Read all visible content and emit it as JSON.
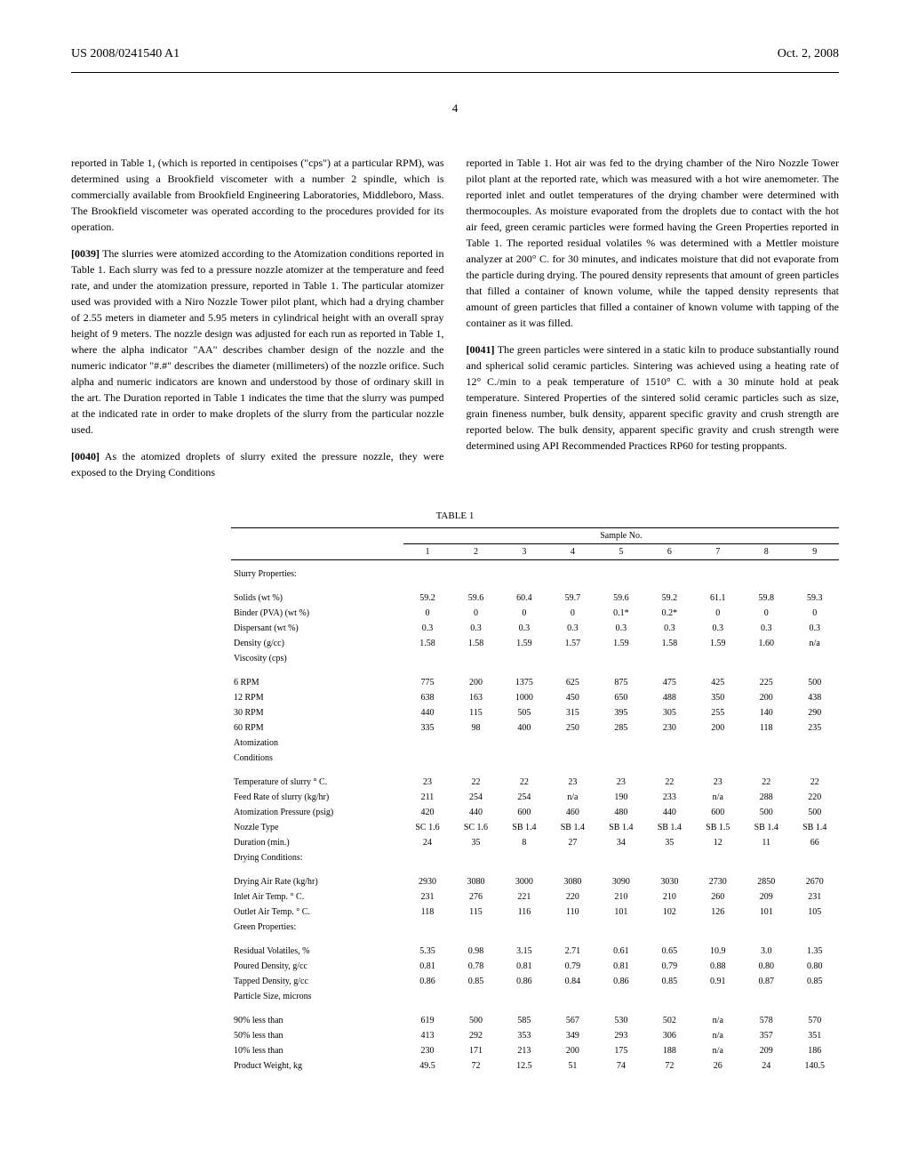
{
  "header": {
    "pub_number": "US 2008/0241540 A1",
    "date": "Oct. 2, 2008"
  },
  "page_number": "4",
  "paragraphs": {
    "pre39": "reported in Table 1, (which is reported in centipoises (\"cps\") at a particular RPM), was determined using a Brookfield viscometer with a number 2 spindle, which is commercially available from Brookfield Engineering Laboratories, Middleboro, Mass. The Brookfield viscometer was operated according to the procedures provided for its operation.",
    "p39_num": "[0039]",
    "p39": " The slurries were atomized according to the Atomization conditions reported in Table 1. Each slurry was fed to a pressure nozzle atomizer at the temperature and feed rate, and under the atomization pressure, reported in Table 1. The particular atomizer used was provided with a Niro Nozzle Tower pilot plant, which had a drying chamber of 2.55 meters in diameter and 5.95 meters in cylindrical height with an overall spray height of 9 meters. The nozzle design was adjusted for each run as reported in Table 1, where the alpha indicator \"AA\" describes chamber design of the nozzle and the numeric indicator \"#.#\" describes the diameter (millimeters) of the nozzle orifice. Such alpha and numeric indicators are known and understood by those of ordinary skill in the art. The Duration reported in Table 1 indicates the time that the slurry was pumped at the indicated rate in order to make droplets of the slurry from the particular nozzle used.",
    "p40_num": "[0040]",
    "p40": " As the atomized droplets of slurry exited the pressure nozzle, they were exposed to the Drying Conditions",
    "p40_cont": "reported in Table 1. Hot air was fed to the drying chamber of the Niro Nozzle Tower pilot plant at the reported rate, which was measured with a hot wire anemometer. The reported inlet and outlet temperatures of the drying chamber were determined with thermocouples. As moisture evaporated from the droplets due to contact with the hot air feed, green ceramic particles were formed having the Green Properties reported in Table 1. The reported residual volatiles % was determined with a Mettler moisture analyzer at 200° C. for 30 minutes, and indicates moisture that did not evaporate from the particle during drying. The poured density represents that amount of green particles that filled a container of known volume, while the tapped density represents that amount of green particles that filled a container of known volume with tapping of the container as it was filled.",
    "p41_num": "[0041]",
    "p41": " The green particles were sintered in a static kiln to produce substantially round and spherical solid ceramic particles. Sintering was achieved using a heating rate of 12° C./min to a peak temperature of 1510° C. with a 30 minute hold at peak temperature. Sintered Properties of the sintered solid ceramic particles such as size, grain fineness number, bulk density, apparent specific gravity and crush strength are reported below. The bulk density, apparent specific gravity and crush strength were determined using API Recommended Practices RP60 for testing proppants."
  },
  "table": {
    "title": "TABLE 1",
    "sample_label": "Sample No.",
    "columns": [
      "1",
      "2",
      "3",
      "4",
      "5",
      "6",
      "7",
      "8",
      "9"
    ],
    "sections": [
      {
        "name": "Slurry Properties:",
        "rows": [
          {
            "label": "Solids (wt %)",
            "vals": [
              "59.2",
              "59.6",
              "60.4",
              "59.7",
              "59.6",
              "59.2",
              "61.1",
              "59.8",
              "59.3"
            ]
          },
          {
            "label": "Binder (PVA) (wt %)",
            "vals": [
              "0",
              "0",
              "0",
              "0",
              "0.1*",
              "0.2*",
              "0",
              "0",
              "0"
            ]
          },
          {
            "label": "Dispersant (wt %)",
            "vals": [
              "0.3",
              "0.3",
              "0.3",
              "0.3",
              "0.3",
              "0.3",
              "0.3",
              "0.3",
              "0.3"
            ]
          },
          {
            "label": "Density (g/cc)",
            "vals": [
              "1.58",
              "1.58",
              "1.59",
              "1.57",
              "1.59",
              "1.58",
              "1.59",
              "1.60",
              "n/a"
            ]
          },
          {
            "label": "Viscosity (cps)",
            "vals": [
              "",
              "",
              "",
              "",
              "",
              "",
              "",
              "",
              ""
            ]
          }
        ]
      },
      {
        "name": "",
        "rows": [
          {
            "label": "6 RPM",
            "vals": [
              "775",
              "200",
              "1375",
              "625",
              "875",
              "475",
              "425",
              "225",
              "500"
            ]
          },
          {
            "label": "12 RPM",
            "vals": [
              "638",
              "163",
              "1000",
              "450",
              "650",
              "488",
              "350",
              "200",
              "438"
            ]
          },
          {
            "label": "30 RPM",
            "vals": [
              "440",
              "115",
              "505",
              "315",
              "395",
              "305",
              "255",
              "140",
              "290"
            ]
          },
          {
            "label": "60 RPM",
            "vals": [
              "335",
              "98",
              "400",
              "250",
              "285",
              "230",
              "200",
              "118",
              "235"
            ]
          },
          {
            "label": "Atomization",
            "vals": [
              "",
              "",
              "",
              "",
              "",
              "",
              "",
              "",
              ""
            ]
          },
          {
            "label": "Conditions",
            "vals": [
              "",
              "",
              "",
              "",
              "",
              "",
              "",
              "",
              ""
            ]
          }
        ]
      },
      {
        "name": "",
        "rows": [
          {
            "label": "Temperature of slurry ° C.",
            "vals": [
              "23",
              "22",
              "22",
              "23",
              "23",
              "22",
              "23",
              "22",
              "22"
            ]
          },
          {
            "label": "Feed Rate of slurry (kg/hr)",
            "vals": [
              "211",
              "254",
              "254",
              "n/a",
              "190",
              "233",
              "n/a",
              "288",
              "220"
            ]
          },
          {
            "label": "Atomization Pressure (psig)",
            "vals": [
              "420",
              "440",
              "600",
              "460",
              "480",
              "440",
              "600",
              "500",
              "500"
            ]
          },
          {
            "label": "Nozzle Type",
            "vals": [
              "SC 1.6",
              "SC 1.6",
              "SB 1.4",
              "SB 1.4",
              "SB 1.4",
              "SB 1.4",
              "SB 1.5",
              "SB 1.4",
              "SB 1.4"
            ]
          },
          {
            "label": "Duration (min.)",
            "vals": [
              "24",
              "35",
              "8",
              "27",
              "34",
              "35",
              "12",
              "11",
              "66"
            ]
          },
          {
            "label": "Drying Conditions:",
            "vals": [
              "",
              "",
              "",
              "",
              "",
              "",
              "",
              "",
              ""
            ]
          }
        ]
      },
      {
        "name": "",
        "rows": [
          {
            "label": "Drying Air Rate (kg/hr)",
            "vals": [
              "2930",
              "3080",
              "3000",
              "3080",
              "3090",
              "3030",
              "2730",
              "2850",
              "2670"
            ]
          },
          {
            "label": "Inlet Air Temp. ° C.",
            "vals": [
              "231",
              "276",
              "221",
              "220",
              "210",
              "210",
              "260",
              "209",
              "231"
            ]
          },
          {
            "label": "Outlet Air Temp. ° C.",
            "vals": [
              "118",
              "115",
              "116",
              "110",
              "101",
              "102",
              "126",
              "101",
              "105"
            ]
          },
          {
            "label": "Green Properties:",
            "vals": [
              "",
              "",
              "",
              "",
              "",
              "",
              "",
              "",
              ""
            ]
          }
        ]
      },
      {
        "name": "",
        "rows": [
          {
            "label": "Residual Volatiles, %",
            "vals": [
              "5.35",
              "0.98",
              "3.15",
              "2.71",
              "0.61",
              "0.65",
              "10.9",
              "3.0",
              "1.35"
            ]
          },
          {
            "label": "Poured Density, g/cc",
            "vals": [
              "0.81",
              "0.78",
              "0.81",
              "0.79",
              "0.81",
              "0.79",
              "0.88",
              "0.80",
              "0.80"
            ]
          },
          {
            "label": "Tapped Density, g/cc",
            "vals": [
              "0.86",
              "0.85",
              "0.86",
              "0.84",
              "0.86",
              "0.85",
              "0.91",
              "0.87",
              "0.85"
            ]
          },
          {
            "label": "Particle Size, microns",
            "vals": [
              "",
              "",
              "",
              "",
              "",
              "",
              "",
              "",
              ""
            ]
          }
        ]
      },
      {
        "name": "",
        "rows": [
          {
            "label": "90% less than",
            "vals": [
              "619",
              "500",
              "585",
              "567",
              "530",
              "502",
              "n/a",
              "578",
              "570"
            ]
          },
          {
            "label": "50% less than",
            "vals": [
              "413",
              "292",
              "353",
              "349",
              "293",
              "306",
              "n/a",
              "357",
              "351"
            ]
          },
          {
            "label": "10% less than",
            "vals": [
              "230",
              "171",
              "213",
              "200",
              "175",
              "188",
              "n/a",
              "209",
              "186"
            ]
          },
          {
            "label": "Product Weight, kg",
            "vals": [
              "49.5",
              "72",
              "12.5",
              "51",
              "74",
              "72",
              "26",
              "24",
              "140.5"
            ]
          }
        ]
      }
    ]
  }
}
